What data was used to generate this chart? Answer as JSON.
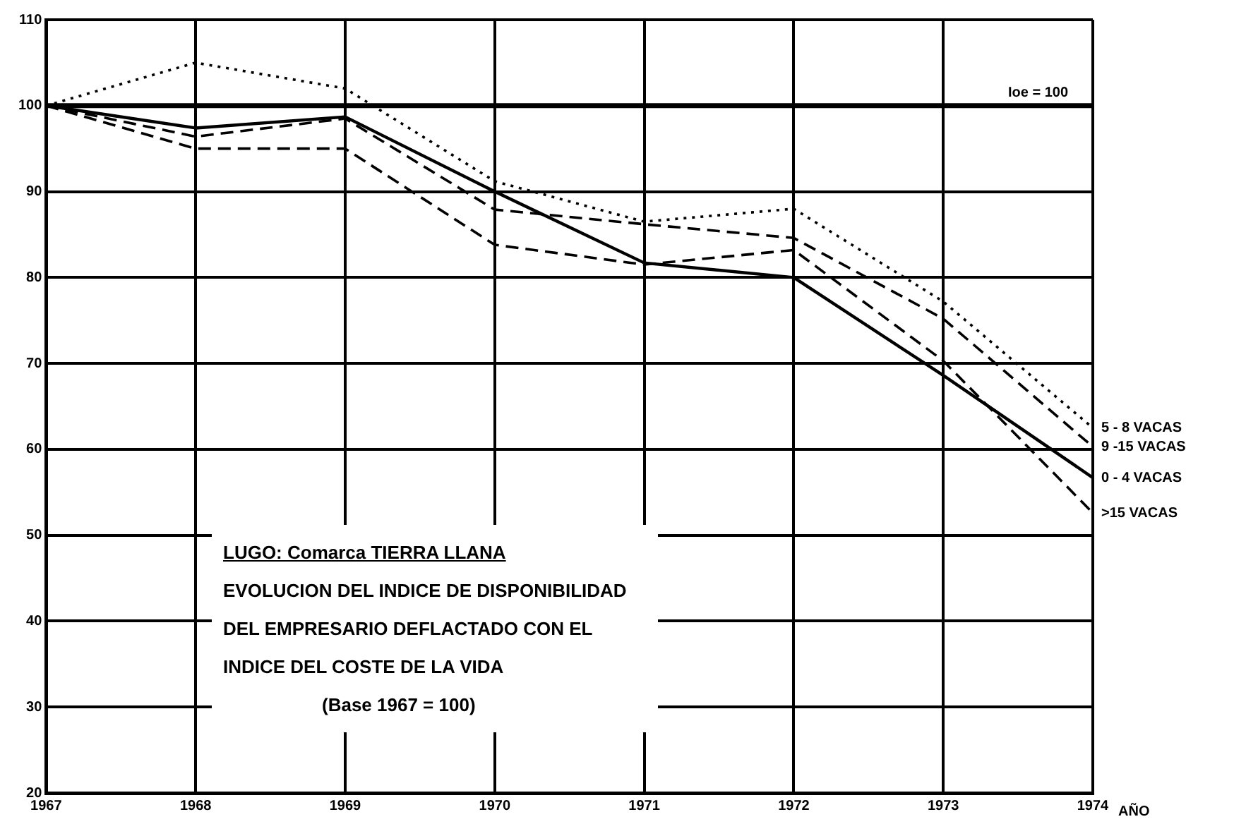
{
  "chart_data": {
    "type": "line",
    "title": "LUGO: Comarca TIERRA LLANA",
    "subtitle": "EVOLUCION DEL INDICE DE DISPONIBILIDAD DEL EMPRESARIO DEFLACTADO CON EL INDICE DEL COSTE DE LA VIDA",
    "annotations": [
      "(Base 1967 = 100)"
    ],
    "xlabel": "AÑO",
    "x": [
      1967,
      1968,
      1969,
      1970,
      1971,
      1972,
      1973,
      1974
    ],
    "series": [
      {
        "name": "5 - 8 VACAS",
        "color": "#000000",
        "line_style": "dotted",
        "values": [
          100,
          105,
          102,
          91.2,
          86.5,
          88,
          77.2,
          62.5
        ]
      },
      {
        "name": "9 -15 VACAS",
        "color": "#000000",
        "line_style": "dashed",
        "values": [
          100,
          96.4,
          98.5,
          87.9,
          86.2,
          84.6,
          75.2,
          60.3
        ]
      },
      {
        "name": "0 - 4 VACAS",
        "color": "#000000",
        "line_style": "solid",
        "values": [
          100,
          97.4,
          98.7,
          90,
          81.7,
          80,
          68.6,
          56.7
        ]
      },
      {
        "name": ">15 VACAS",
        "color": "#000000",
        "line_style": "dashed",
        "values": [
          100,
          95,
          95,
          83.8,
          81.5,
          83.2,
          70.3,
          52.6
        ]
      }
    ],
    "xlim": [
      1967,
      1974
    ],
    "xticks": [
      1967,
      1968,
      1969,
      1970,
      1971,
      1972,
      1973,
      1974
    ],
    "ylim": [
      20,
      110
    ],
    "yticks": [
      20,
      30,
      40,
      50,
      60,
      70,
      80,
      90,
      100,
      110
    ],
    "ref_lines": [
      {
        "axis": "y",
        "value": 100,
        "label": "Ioe = 100"
      }
    ],
    "grid": true,
    "legend": false,
    "marker": "none"
  }
}
